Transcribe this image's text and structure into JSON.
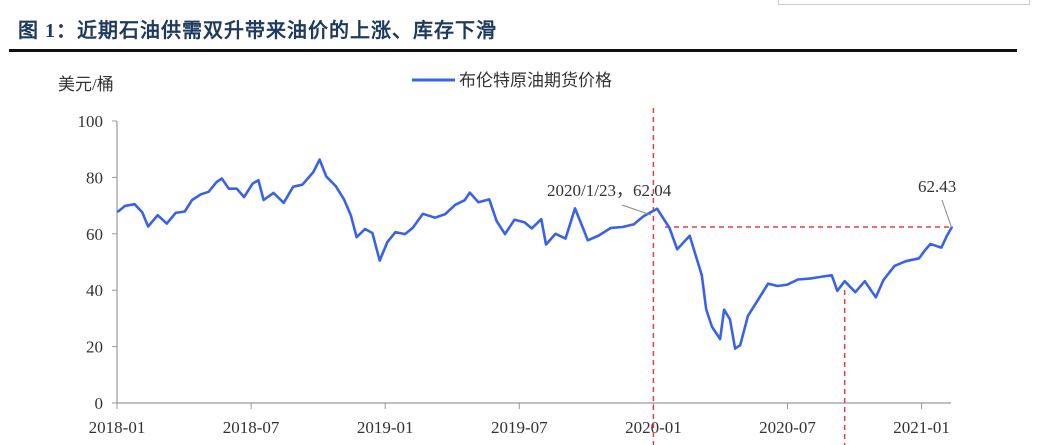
{
  "title": "图 1：近期石油供需双升带来油价的上涨、库存下滑",
  "chart_data": {
    "type": "line",
    "title": "",
    "ylabel": "美元/桶",
    "xlabel": "",
    "ylim": [
      0,
      100
    ],
    "yticks": [
      0,
      20,
      40,
      60,
      80,
      100
    ],
    "xlim": [
      "2018-01-01",
      "2021-02-15"
    ],
    "xticks": [
      "2018-01",
      "2018-07",
      "2019-01",
      "2019-07",
      "2020-01",
      "2020-07",
      "2021-01"
    ],
    "grid": false,
    "legend_position": "top-center",
    "series": [
      {
        "name": "布伦特原油期货价格",
        "color": "#3a62e6",
        "points": [
          [
            "2018-01-02",
            67.8
          ],
          [
            "2018-01-12",
            69.9
          ],
          [
            "2018-01-25",
            70.5
          ],
          [
            "2018-02-05",
            67.6
          ],
          [
            "2018-02-13",
            62.6
          ],
          [
            "2018-02-26",
            66.6
          ],
          [
            "2018-03-08",
            63.6
          ],
          [
            "2018-03-20",
            67.4
          ],
          [
            "2018-04-02",
            67.9
          ],
          [
            "2018-04-12",
            72.0
          ],
          [
            "2018-04-24",
            74.0
          ],
          [
            "2018-05-04",
            74.9
          ],
          [
            "2018-05-15",
            78.4
          ],
          [
            "2018-05-22",
            79.6
          ],
          [
            "2018-06-01",
            76.0
          ],
          [
            "2018-06-12",
            76.0
          ],
          [
            "2018-06-22",
            73.0
          ],
          [
            "2018-07-03",
            77.8
          ],
          [
            "2018-07-11",
            79.0
          ],
          [
            "2018-07-18",
            72.0
          ],
          [
            "2018-08-01",
            74.5
          ],
          [
            "2018-08-15",
            71.0
          ],
          [
            "2018-08-28",
            76.7
          ],
          [
            "2018-09-10",
            77.4
          ],
          [
            "2018-09-25",
            81.9
          ],
          [
            "2018-10-03",
            86.3
          ],
          [
            "2018-10-12",
            80.4
          ],
          [
            "2018-10-25",
            76.9
          ],
          [
            "2018-11-06",
            72.1
          ],
          [
            "2018-11-15",
            66.6
          ],
          [
            "2018-11-23",
            58.8
          ],
          [
            "2018-12-04",
            61.7
          ],
          [
            "2018-12-14",
            60.3
          ],
          [
            "2018-12-24",
            50.5
          ],
          [
            "2019-01-04",
            57.1
          ],
          [
            "2019-01-15",
            60.6
          ],
          [
            "2019-01-28",
            59.9
          ],
          [
            "2019-02-08",
            62.1
          ],
          [
            "2019-02-22",
            67.1
          ],
          [
            "2019-03-08",
            65.7
          ],
          [
            "2019-03-22",
            67.0
          ],
          [
            "2019-04-05",
            70.3
          ],
          [
            "2019-04-18",
            71.9
          ],
          [
            "2019-04-25",
            74.6
          ],
          [
            "2019-05-06",
            71.2
          ],
          [
            "2019-05-21",
            72.2
          ],
          [
            "2019-05-31",
            64.5
          ],
          [
            "2019-06-12",
            59.9
          ],
          [
            "2019-06-25",
            65.0
          ],
          [
            "2019-07-08",
            64.1
          ],
          [
            "2019-07-18",
            61.9
          ],
          [
            "2019-07-31",
            65.2
          ],
          [
            "2019-08-07",
            56.2
          ],
          [
            "2019-08-20",
            60.0
          ],
          [
            "2019-09-03",
            58.3
          ],
          [
            "2019-09-16",
            69.0
          ],
          [
            "2019-09-27",
            61.9
          ],
          [
            "2019-10-03",
            57.7
          ],
          [
            "2019-10-18",
            59.4
          ],
          [
            "2019-11-04",
            62.1
          ],
          [
            "2019-11-20",
            62.4
          ],
          [
            "2019-12-05",
            63.4
          ],
          [
            "2019-12-18",
            66.2
          ],
          [
            "2020-01-06",
            68.9
          ],
          [
            "2020-01-23",
            62.04
          ],
          [
            "2020-02-03",
            54.5
          ],
          [
            "2020-02-20",
            59.3
          ],
          [
            "2020-03-06",
            45.3
          ],
          [
            "2020-03-12",
            33.2
          ],
          [
            "2020-03-20",
            27.0
          ],
          [
            "2020-03-31",
            22.7
          ],
          [
            "2020-04-06",
            33.1
          ],
          [
            "2020-04-14",
            29.6
          ],
          [
            "2020-04-21",
            19.3
          ],
          [
            "2020-04-28",
            20.5
          ],
          [
            "2020-05-08",
            30.9
          ],
          [
            "2020-05-20",
            35.8
          ],
          [
            "2020-06-05",
            42.3
          ],
          [
            "2020-06-18",
            41.5
          ],
          [
            "2020-07-01",
            42.0
          ],
          [
            "2020-07-15",
            43.8
          ],
          [
            "2020-08-03",
            44.2
          ],
          [
            "2020-08-20",
            44.9
          ],
          [
            "2020-08-31",
            45.3
          ],
          [
            "2020-09-08",
            39.8
          ],
          [
            "2020-09-18",
            43.2
          ],
          [
            "2020-10-02",
            39.3
          ],
          [
            "2020-10-15",
            43.2
          ],
          [
            "2020-10-30",
            37.5
          ],
          [
            "2020-11-10",
            43.6
          ],
          [
            "2020-11-25",
            48.6
          ],
          [
            "2020-12-10",
            50.3
          ],
          [
            "2020-12-28",
            51.3
          ],
          [
            "2021-01-06",
            54.3
          ],
          [
            "2021-01-13",
            56.4
          ],
          [
            "2021-01-28",
            55.1
          ],
          [
            "2021-02-05",
            59.3
          ],
          [
            "2021-02-12",
            62.43
          ]
        ]
      }
    ],
    "annotations": [
      {
        "label": "2020/1/23，62.04",
        "date": "2020-01-23",
        "value": 62.04
      },
      {
        "label": "62.43",
        "date": "2021-02-12",
        "value": 62.43
      }
    ],
    "reference_lines": {
      "color": "#e04040",
      "vertical_dates": [
        "2020-01-01",
        "2020-09-18"
      ],
      "horizontal_value": 62.43
    }
  }
}
